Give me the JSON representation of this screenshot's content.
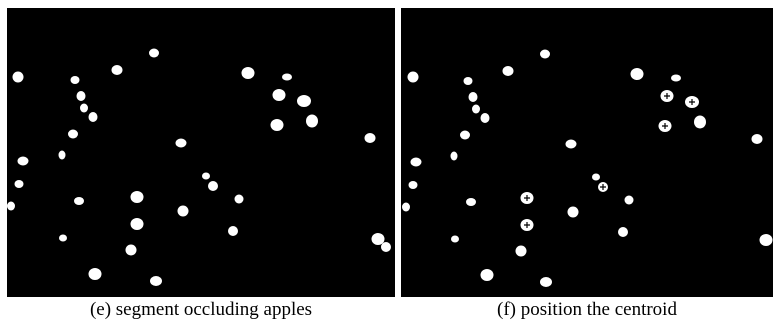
{
  "figure": {
    "caption_e": "(e) segment occluding apples",
    "caption_f": "(f) position the centroid"
  },
  "colors": {
    "background": "#000000",
    "apple": "#ffffff",
    "page": "#ffffff"
  }
}
